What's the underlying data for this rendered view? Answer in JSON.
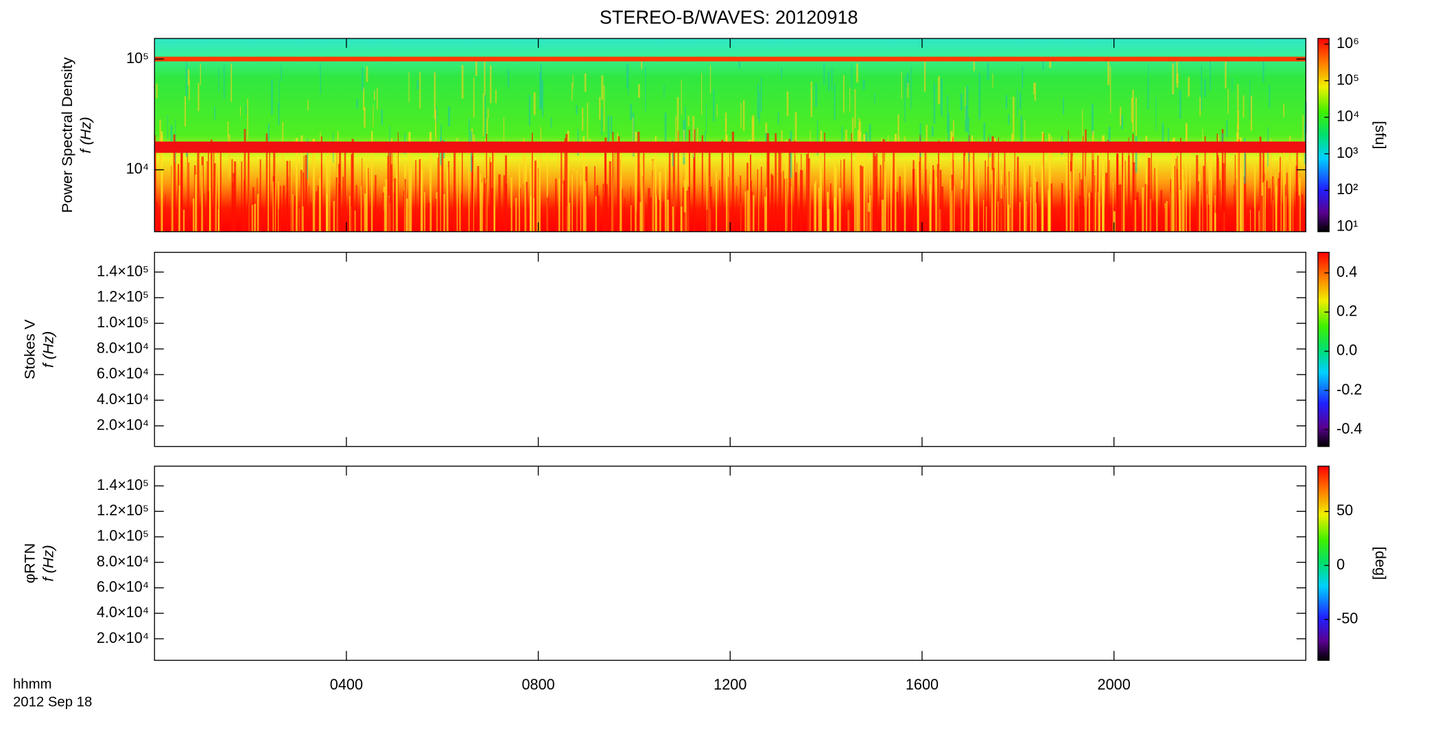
{
  "chart_data": {
    "title": "STEREO-B/WAVES: 20120918",
    "xlabel": "hhmm",
    "date": "2012 Sep 18",
    "xlim": [
      0,
      24
    ],
    "xticks": [
      {
        "value": 4,
        "label": "0400"
      },
      {
        "value": 8,
        "label": "0800"
      },
      {
        "value": 12,
        "label": "1200"
      },
      {
        "value": 16,
        "label": "1600"
      },
      {
        "value": 20,
        "label": "2000"
      }
    ],
    "panels": [
      {
        "type": "heatmap",
        "ylabel": [
          "Power Spectral Density",
          "f (Hz)"
        ],
        "log": true,
        "ylim": [
          2760,
          153500
        ],
        "yticks": [
          {
            "value": 10000,
            "label": "10⁴"
          },
          {
            "value": 100000,
            "label": "10⁵"
          }
        ],
        "colorbar": {
          "label": "[sfu]",
          "log": true,
          "lim": [
            7.4,
            1430000
          ],
          "ticks": [
            {
              "value": 10,
              "label": "10¹"
            },
            {
              "value": 100,
              "label": "10²"
            },
            {
              "value": 1000,
              "label": "10³"
            },
            {
              "value": 10000,
              "label": "10⁴"
            },
            {
              "value": 100000,
              "label": "10⁵"
            },
            {
              "value": 1000000,
              "label": "10⁶"
            }
          ]
        }
      },
      {
        "type": "heatmap",
        "ylabel": [
          "Stokes V",
          "f (Hz)"
        ],
        "log": false,
        "ylim": [
          3900,
          155400
        ],
        "yticks": [
          {
            "value": 20000,
            "label": "2.0×10⁴"
          },
          {
            "value": 40000,
            "label": "4.0×10⁴"
          },
          {
            "value": 60000,
            "label": "6.0×10⁴"
          },
          {
            "value": 80000,
            "label": "8.0×10⁴"
          },
          {
            "value": 100000,
            "label": "1.0×10⁵"
          },
          {
            "value": 120000,
            "label": "1.2×10⁵"
          },
          {
            "value": 140000,
            "label": "1.4×10⁵"
          }
        ],
        "colorbar": {
          "log": false,
          "lim": [
            -0.486,
            0.505
          ],
          "ticks": [
            -0.4,
            -0.2,
            {
              "value": 0,
              "label": "0.0"
            },
            0.2,
            0.4
          ]
        }
      },
      {
        "type": "heatmap",
        "ylabel": [
          "φRTN",
          "f (Hz)"
        ],
        "log": false,
        "ylim": [
          3070,
          155460
        ],
        "yticks": [
          {
            "value": 20000,
            "label": "2.0×10⁴"
          },
          {
            "value": 40000,
            "label": "4.0×10⁴"
          },
          {
            "value": 60000,
            "label": "6.0×10⁴"
          },
          {
            "value": 80000,
            "label": "8.0×10⁴"
          },
          {
            "value": 100000,
            "label": "1.0×10⁵"
          },
          {
            "value": 120000,
            "label": "1.2×10⁵"
          },
          {
            "value": 140000,
            "label": "1.4×10⁵"
          }
        ],
        "colorbar": {
          "label": "[deg]",
          "log": false,
          "lim": [
            -88,
            92
          ],
          "ticks": [
            -50,
            0,
            50
          ]
        }
      }
    ]
  }
}
